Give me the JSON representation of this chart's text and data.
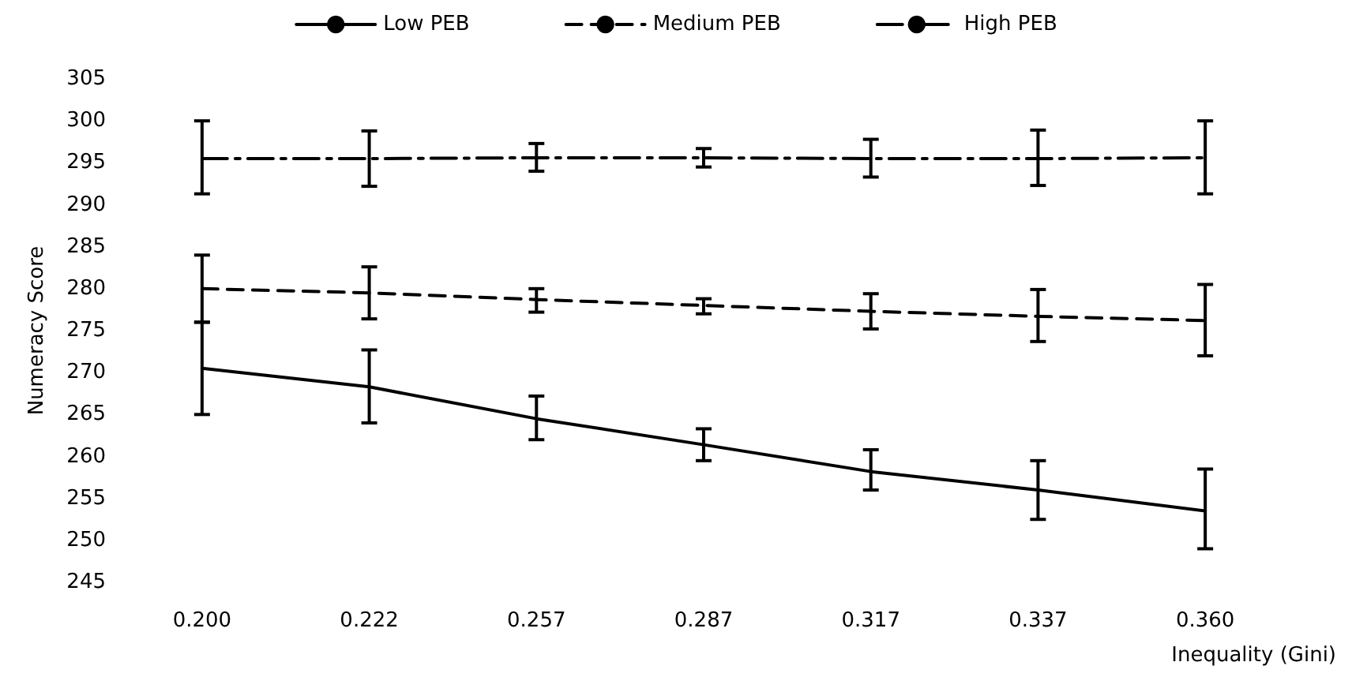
{
  "chart_data": {
    "type": "line",
    "xlabel": "Inequality (Gini)",
    "ylabel": "Numeracy Score",
    "categories": [
      "0.200",
      "0.222",
      "0.257",
      "0.287",
      "0.317",
      "0.337",
      "0.360"
    ],
    "ylim": [
      245,
      305
    ],
    "yticks": [
      245,
      250,
      255,
      260,
      265,
      270,
      275,
      280,
      285,
      290,
      295,
      300,
      305
    ],
    "grid": false,
    "legend": "top",
    "marker": "none",
    "series": [
      {
        "name": "Low PEB",
        "color": "#000000",
        "line_style": "solid",
        "values": [
          270.5,
          268.3,
          264.5,
          261.4,
          258.2,
          256,
          253.5
        ],
        "errors": [
          [
            265,
            276
          ],
          [
            264,
            272.7
          ],
          [
            262,
            267.2
          ],
          [
            259.5,
            263.3
          ],
          [
            256,
            260.8
          ],
          [
            252.5,
            259.5
          ],
          [
            249,
            258.5
          ]
        ]
      },
      {
        "name": "Medium PEB",
        "color": "#000000",
        "line_style": "dashed",
        "values": [
          280,
          279.5,
          278.7,
          278,
          277.3,
          276.7,
          276.2
        ],
        "errors": [
          [
            276,
            284
          ],
          [
            276.4,
            282.6
          ],
          [
            277.2,
            280
          ],
          [
            277,
            278.8
          ],
          [
            275.2,
            279.4
          ],
          [
            273.7,
            279.9
          ],
          [
            272,
            280.5
          ]
        ]
      },
      {
        "name": "High PEB",
        "color": "#000000",
        "line_style": "dashdot",
        "values": [
          295.5,
          295.5,
          295.6,
          295.6,
          295.5,
          295.5,
          295.6
        ],
        "errors": [
          [
            291.3,
            300
          ],
          [
            292.2,
            298.8
          ],
          [
            294,
            297.3
          ],
          [
            294.5,
            296.7
          ],
          [
            293.3,
            297.8
          ],
          [
            292.3,
            298.9
          ],
          [
            291.3,
            300
          ]
        ]
      }
    ]
  }
}
